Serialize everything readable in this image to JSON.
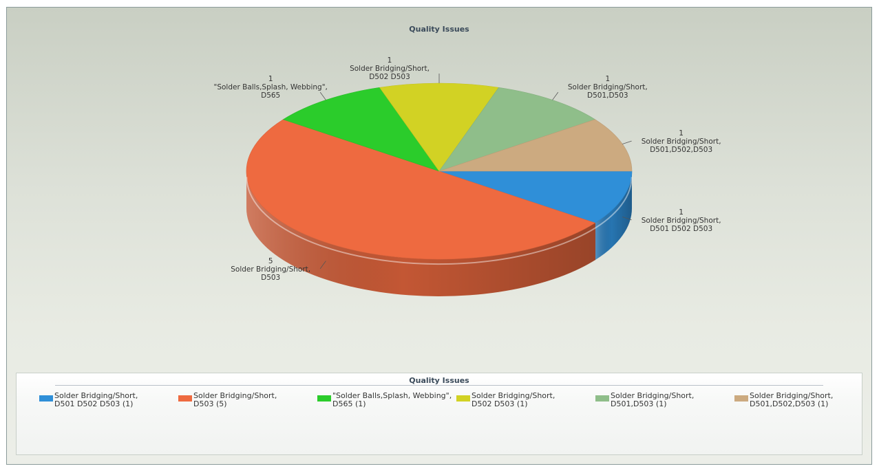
{
  "chart_data": {
    "type": "pie",
    "title": "Quality Issues",
    "legend_title": "Quality Issues",
    "legend_placement": "bottom",
    "slices": [
      {
        "label": "Solder Bridging/Short,\nD501 D502 D503",
        "value": 1,
        "legend": "Solder Bridging/Short,\nD501 D502 D503 (1)",
        "color": "#2f8fd8"
      },
      {
        "label": "Solder Bridging/Short,\nD503",
        "value": 5,
        "legend": "Solder Bridging/Short,\nD503 (5)",
        "color": "#ee6a40"
      },
      {
        "label": "\"Solder Balls,Splash, Webbing\",\nD565",
        "value": 1,
        "legend": "\"Solder Balls,Splash, Webbing\",\nD565 (1)",
        "color": "#2bcc2b"
      },
      {
        "label": "Solder Bridging/Short,\nD502 D503",
        "value": 1,
        "legend": "Solder Bridging/Short,\nD502 D503 (1)",
        "color": "#d2d224"
      },
      {
        "label": "Solder Bridging/Short,\nD501,D503",
        "value": 1,
        "legend": "Solder Bridging/Short,\nD501,D503 (1)",
        "color": "#8fbe8a"
      },
      {
        "label": "Solder Bridging/Short,\nD501,D502,D503",
        "value": 1,
        "legend": "Solder Bridging/Short,\nD501,D502,D503 (1)",
        "color": "#ccaa80"
      }
    ]
  }
}
